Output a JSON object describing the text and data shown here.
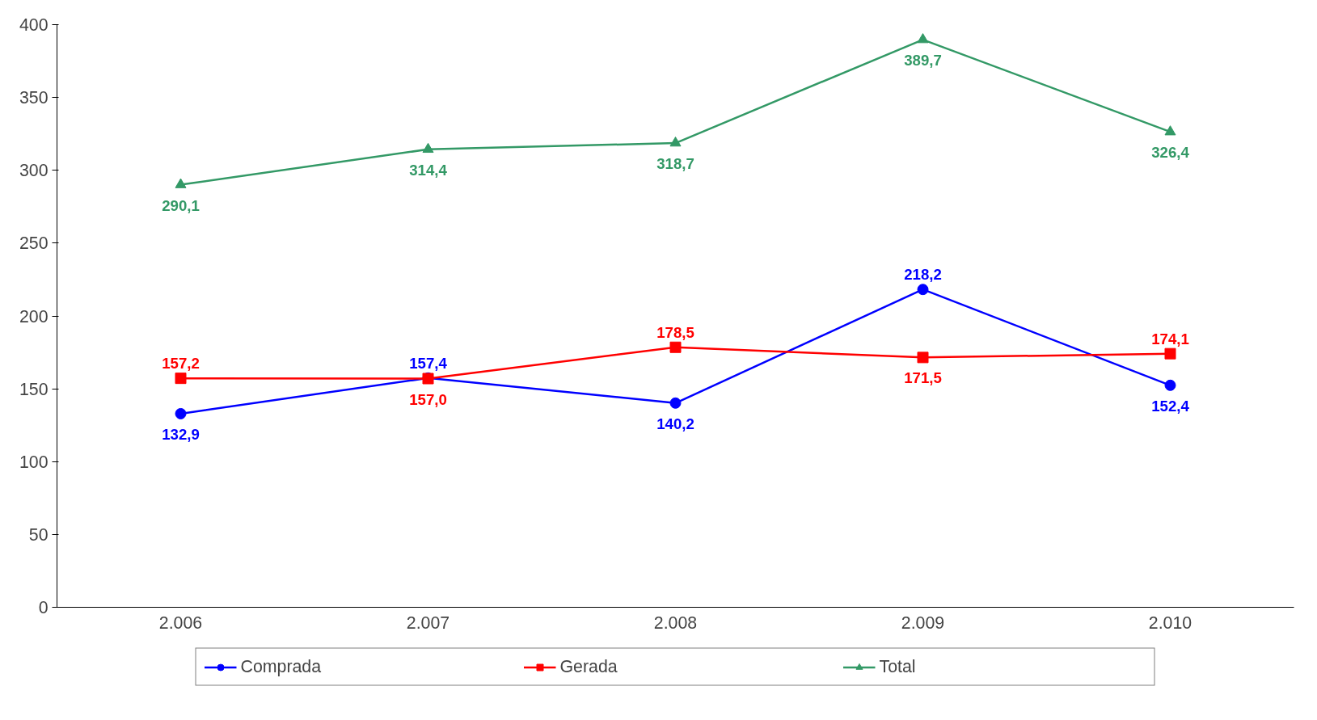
{
  "chart_data": {
    "type": "line",
    "categories": [
      "2.006",
      "2.007",
      "2.008",
      "2.009",
      "2.010"
    ],
    "series": [
      {
        "name": "Comprada",
        "color": "#0000ff",
        "marker": "circle",
        "values": [
          132.9,
          157.4,
          140.2,
          218.2,
          152.4
        ],
        "value_labels": [
          "132,9",
          "157,4",
          "140,2",
          "218,2",
          "152,4"
        ]
      },
      {
        "name": "Gerada",
        "color": "#ff0000",
        "marker": "square",
        "values": [
          157.2,
          157.0,
          178.5,
          171.5,
          174.1
        ],
        "value_labels": [
          "157,2",
          "157,0",
          "178,5",
          "171,5",
          "174,1"
        ]
      },
      {
        "name": "Total",
        "color": "#339966",
        "marker": "triangle",
        "values": [
          290.1,
          314.4,
          318.7,
          389.7,
          326.4
        ],
        "value_labels": [
          "290,1",
          "314,4",
          "318,7",
          "389,7",
          "326,4"
        ]
      }
    ],
    "ylim": [
      0,
      400
    ],
    "yticks": [
      0,
      50,
      100,
      150,
      200,
      250,
      300,
      350,
      400
    ],
    "grid": false,
    "legend": "bottom",
    "line_style": "solid"
  }
}
